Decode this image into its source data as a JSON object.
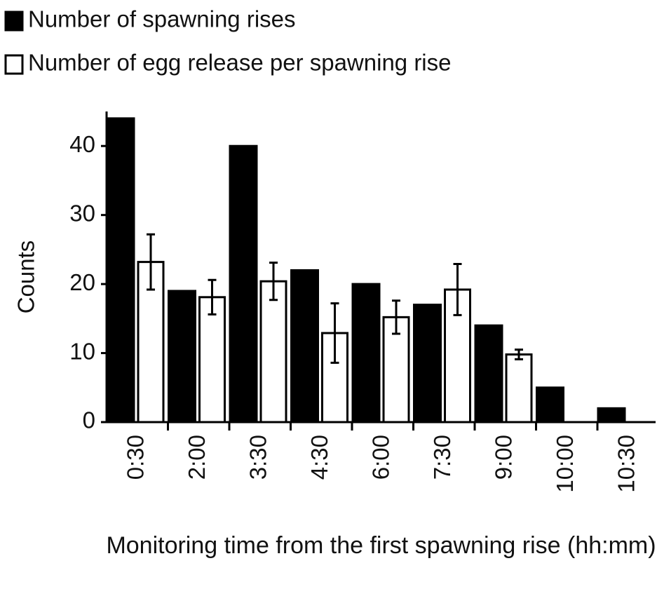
{
  "chart_data": {
    "type": "bar",
    "xlabel": "Monitoring time from the first spawning rise (hh:mm)",
    "ylabel": "Counts",
    "categories": [
      "0:30",
      "2:00",
      "3:30",
      "4:30",
      "6:00",
      "7:30",
      "9:00",
      "10:00",
      "10:30"
    ],
    "series": [
      {
        "name": "Number of spawning rises",
        "color": "#000000",
        "values": [
          44,
          19,
          40,
          22,
          20,
          17,
          14,
          5,
          2
        ]
      },
      {
        "name": "Number of egg release per spawning rise",
        "color": "#ffffff",
        "values": [
          23.2,
          18.1,
          20.4,
          12.9,
          15.2,
          19.2,
          9.8,
          null,
          null
        ],
        "errors": [
          4,
          2.5,
          2.7,
          4.3,
          2.4,
          3.7,
          0.7,
          null,
          null
        ]
      }
    ],
    "ylim": [
      0,
      45
    ],
    "yticks": [
      0,
      10,
      20,
      30,
      40
    ],
    "legend": "top-left"
  }
}
